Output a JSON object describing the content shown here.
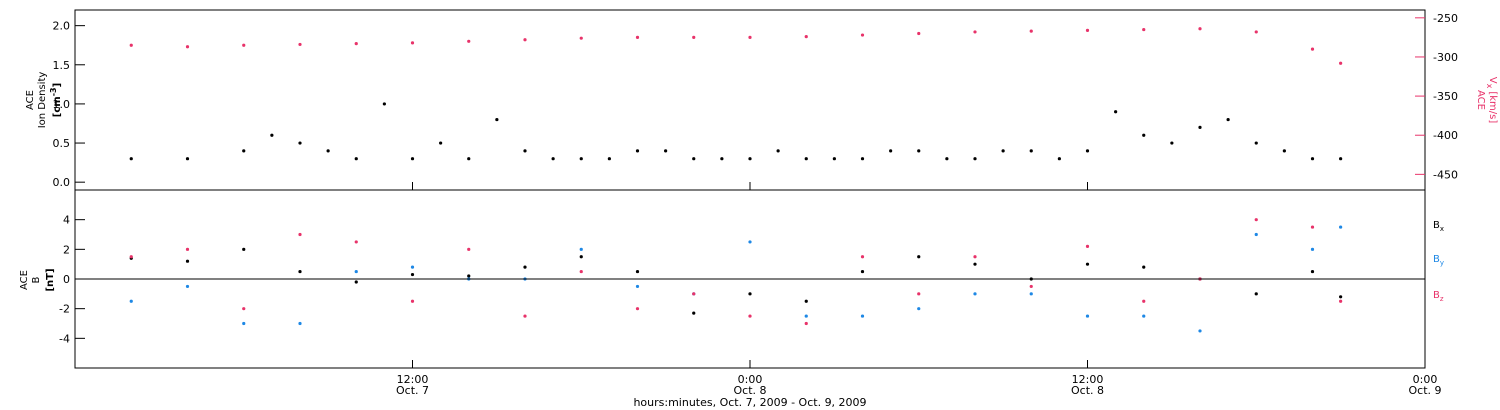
{
  "chart_data": [
    {
      "type": "scatter",
      "panel": "top",
      "y_left_label": {
        "line1": "ACE",
        "line2": "Ion Density",
        "unit": "[cm",
        "unit_sup": "-3",
        "unit_end": "]"
      },
      "y_right_label": {
        "base": "ACE",
        "sub": "V",
        "sub_index": "x",
        "unit": "[km/s]"
      },
      "ylim_left": [
        -0.1,
        2.2
      ],
      "yticks_left": [
        "0.0",
        "0.5",
        "1.0",
        "1.5",
        "2.0"
      ],
      "ylim_right": [
        -470,
        -240
      ],
      "yticks_right": [
        "-250",
        "-300",
        "-350",
        "-400",
        "-450"
      ],
      "x_hours_range": [
        0,
        48
      ],
      "series": [
        {
          "name": "Ion Density",
          "color": "#000000",
          "axis": "left",
          "x_hours": [
            2,
            4,
            6,
            7,
            8,
            9,
            10,
            11,
            12,
            13,
            14,
            15,
            16,
            17,
            18,
            19,
            20,
            21,
            22,
            23,
            24,
            25,
            26,
            27,
            28,
            29,
            30,
            31,
            32,
            33,
            34,
            35,
            36,
            37,
            38,
            39,
            40,
            41,
            42,
            43,
            44,
            45
          ],
          "values": [
            0.3,
            0.3,
            0.4,
            0.6,
            0.5,
            0.4,
            0.3,
            1.0,
            0.3,
            0.5,
            0.3,
            0.8,
            0.4,
            0.3,
            0.3,
            0.3,
            0.4,
            0.4,
            0.3,
            0.3,
            0.3,
            0.4,
            0.3,
            0.3,
            0.3,
            0.4,
            0.4,
            0.3,
            0.3,
            0.4,
            0.4,
            0.3,
            0.4,
            0.9,
            0.6,
            0.5,
            0.7,
            0.8,
            0.5,
            0.4,
            0.3,
            0.3
          ]
        },
        {
          "name": "Vx",
          "color": "#e8336a",
          "axis": "right",
          "x_hours": [
            2,
            4,
            6,
            8,
            10,
            12,
            14,
            16,
            18,
            20,
            22,
            24,
            26,
            28,
            30,
            32,
            34,
            36,
            38,
            40,
            42,
            44,
            45
          ],
          "values": [
            -285,
            -287,
            -285,
            -284,
            -283,
            -282,
            -280,
            -278,
            -276,
            -275,
            -275,
            -275,
            -274,
            -272,
            -270,
            -268,
            -267,
            -266,
            -265,
            -264,
            -268,
            -290,
            -308
          ]
        }
      ]
    },
    {
      "type": "scatter",
      "panel": "bottom",
      "y_left_label": {
        "line1": "ACE",
        "line2": "B",
        "unit": "[nT]"
      },
      "ylim": [
        -6,
        6
      ],
      "yticks": [
        "4",
        "2",
        "0",
        "-2",
        "-4"
      ],
      "x_hours_range": [
        0,
        48
      ],
      "series": [
        {
          "name": "B",
          "sub": "x",
          "color": "#000000",
          "x_hours": [
            2,
            4,
            6,
            8,
            10,
            12,
            14,
            16,
            18,
            20,
            22,
            24,
            26,
            28,
            30,
            32,
            34,
            36,
            38,
            40,
            42,
            44,
            45
          ],
          "values": [
            1.4,
            1.2,
            2.0,
            0.5,
            -0.2,
            0.3,
            0.2,
            0.8,
            1.5,
            0.5,
            -2.3,
            -1.0,
            -1.5,
            0.5,
            1.5,
            1.0,
            0.0,
            1.0,
            0.8,
            0.0,
            -1.0,
            0.5,
            -1.2
          ]
        },
        {
          "name": "B",
          "sub": "y",
          "color": "#1e88e5",
          "x_hours": [
            2,
            4,
            6,
            8,
            10,
            12,
            14,
            16,
            18,
            20,
            22,
            24,
            26,
            28,
            30,
            32,
            34,
            36,
            38,
            40,
            42,
            44,
            45
          ],
          "values": [
            -1.5,
            -0.5,
            -3.0,
            -3.0,
            0.5,
            0.8,
            0.0,
            0.0,
            2.0,
            -0.5,
            -1.0,
            2.5,
            -2.5,
            -2.5,
            -2.0,
            -1.0,
            -1.0,
            -2.5,
            -2.5,
            -3.5,
            3.0,
            2.0,
            3.5
          ]
        },
        {
          "name": "B",
          "sub": "z",
          "color": "#e8336a",
          "x_hours": [
            2,
            4,
            6,
            8,
            10,
            12,
            14,
            16,
            18,
            20,
            22,
            24,
            26,
            28,
            30,
            32,
            34,
            36,
            38,
            40,
            42,
            44,
            45
          ],
          "values": [
            1.5,
            2.0,
            -2.0,
            3.0,
            2.5,
            -1.5,
            2.0,
            -2.5,
            0.5,
            -2.0,
            -1.0,
            -2.5,
            -3.0,
            1.5,
            -1.0,
            1.5,
            -0.5,
            2.2,
            -1.5,
            0.0,
            4.0,
            3.5,
            -1.5
          ]
        }
      ]
    }
  ],
  "x_axis": {
    "ticks": [
      {
        "hour": 12,
        "time": "12:00",
        "date": "Oct. 7"
      },
      {
        "hour": 24,
        "time": "0:00",
        "date": "Oct. 8"
      },
      {
        "hour": 36,
        "time": "12:00",
        "date": "Oct. 8"
      },
      {
        "hour": 48,
        "time": "0:00",
        "date": "Oct. 9"
      }
    ],
    "label": "hours:minutes, Oct.  7, 2009 - Oct.  9, 2009"
  },
  "colors": {
    "black": "#000000",
    "blue": "#1e88e5",
    "pink": "#e8336a"
  }
}
